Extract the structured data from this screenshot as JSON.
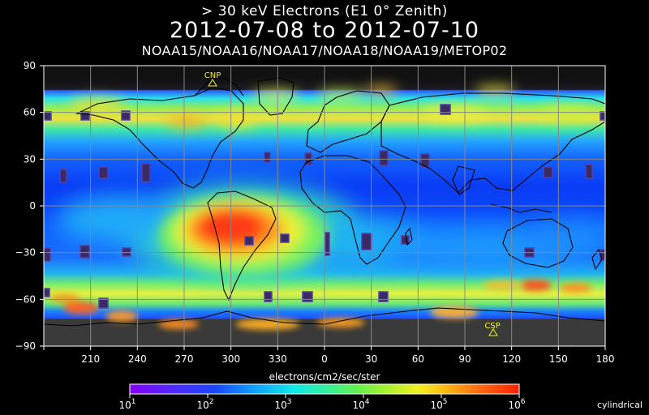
{
  "titles": {
    "line1": "> 30 keV  Electrons (E1 0° Zenith)",
    "line2": "2012-07-08 to 2012-07-10",
    "line3": "NOAA15/NOAA16/NOAA17/NOAA18/NOAA19/METOP02"
  },
  "axes": {
    "lat_ticks": [
      "90",
      "60",
      "30",
      "0",
      "−30",
      "−60",
      "−90"
    ],
    "lon_ticks": [
      "210",
      "240",
      "270",
      "300",
      "330",
      "0",
      "30",
      "60",
      "90",
      "120",
      "150",
      "180"
    ]
  },
  "markers": {
    "north_pole": "CNP",
    "south_pole": "CSP"
  },
  "colorbar": {
    "label": "electrons/cm2/sec/ster",
    "ticks": [
      {
        "base": "10",
        "exp": "1"
      },
      {
        "base": "10",
        "exp": "2"
      },
      {
        "base": "10",
        "exp": "3"
      },
      {
        "base": "10",
        "exp": "4"
      },
      {
        "base": "10",
        "exp": "5"
      },
      {
        "base": "10",
        "exp": "6"
      }
    ]
  },
  "projection": "cylindrical"
}
